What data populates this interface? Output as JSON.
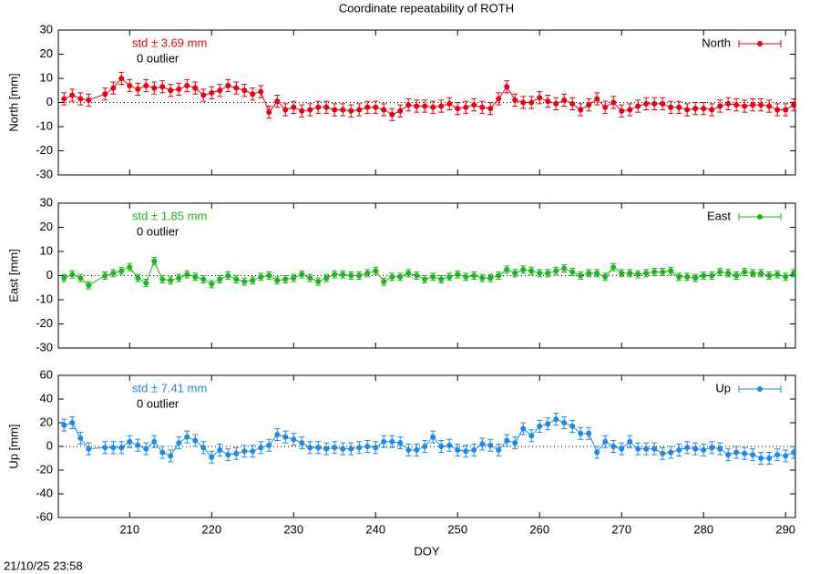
{
  "figure": {
    "title": "Coordinate repeatability of ROTH",
    "timestamp": "21/10/25 23:58"
  },
  "chart_data": [
    {
      "type": "line",
      "ylabel": "North [mm]",
      "xlim": [
        201.3,
        291.2
      ],
      "ylim": [
        -30,
        30
      ],
      "yticks": [
        -30,
        -20,
        -10,
        0,
        10,
        20,
        30
      ],
      "zero_line": true,
      "legend": "top-right",
      "annotations": [
        "std ± 3.69 mm",
        "0 outlier"
      ],
      "x": [
        202,
        203,
        204,
        205,
        207,
        208,
        209,
        210,
        211,
        212,
        213,
        214,
        215,
        216,
        217,
        218,
        219,
        220,
        221,
        222,
        223,
        224,
        225,
        226,
        227,
        228,
        229,
        230,
        231,
        232,
        233,
        234,
        235,
        236,
        237,
        238,
        239,
        240,
        241,
        242,
        243,
        244,
        245,
        246,
        247,
        248,
        249,
        250,
        251,
        252,
        253,
        254,
        255,
        256,
        257,
        258,
        259,
        260,
        261,
        262,
        263,
        264,
        265,
        266,
        267,
        268,
        269,
        270,
        271,
        272,
        273,
        274,
        275,
        276,
        277,
        278,
        279,
        280,
        281,
        282,
        283,
        284,
        285,
        286,
        287,
        288,
        289,
        290,
        291
      ],
      "series": [
        {
          "name": "North",
          "color": "#e4000f",
          "error": 2.5,
          "values": [
            1.5,
            3,
            1.5,
            1,
            3.5,
            6,
            10,
            7,
            5.5,
            7,
            6,
            6.5,
            5,
            5.5,
            7,
            6,
            3,
            4,
            5,
            7,
            6,
            5,
            3.5,
            4.5,
            -4,
            0.5,
            -3,
            -2,
            -3.5,
            -3,
            -2,
            -2,
            -3,
            -3,
            -3.5,
            -3,
            -2,
            -2,
            -3,
            -5,
            -3.5,
            -1,
            -1.5,
            -1.5,
            -2,
            -1.5,
            -0.5,
            -2.5,
            -2,
            -1,
            -2,
            -2.5,
            1.5,
            6.5,
            1,
            0,
            0,
            2,
            0.5,
            -0.5,
            1,
            -0.5,
            -3,
            -1,
            1.5,
            -2,
            0,
            -3.5,
            -3,
            -1.5,
            -0.5,
            -0.5,
            -0.5,
            -2,
            -2,
            -3,
            -2.5,
            -2.5,
            -3,
            -1.5,
            -0.5,
            -1,
            -1.5,
            -1,
            -1,
            -1.5,
            -3,
            -3,
            -1
          ]
        }
      ]
    },
    {
      "type": "line",
      "ylabel": "East [mm]",
      "xlim": [
        201.3,
        291.2
      ],
      "ylim": [
        -30,
        30
      ],
      "yticks": [
        -30,
        -20,
        -10,
        0,
        10,
        20,
        30
      ],
      "zero_line": true,
      "legend": "top-right",
      "annotations": [
        "std ± 1.85 mm",
        "0 outlier"
      ],
      "x": [
        202,
        203,
        204,
        205,
        207,
        208,
        209,
        210,
        211,
        212,
        213,
        214,
        215,
        216,
        217,
        218,
        219,
        220,
        221,
        222,
        223,
        224,
        225,
        226,
        227,
        228,
        229,
        230,
        231,
        232,
        233,
        234,
        235,
        236,
        237,
        238,
        239,
        240,
        241,
        242,
        243,
        244,
        245,
        246,
        247,
        248,
        249,
        250,
        251,
        252,
        253,
        254,
        255,
        256,
        257,
        258,
        259,
        260,
        261,
        262,
        263,
        264,
        265,
        266,
        267,
        268,
        269,
        270,
        271,
        272,
        273,
        274,
        275,
        276,
        277,
        278,
        279,
        280,
        281,
        282,
        283,
        284,
        285,
        286,
        287,
        288,
        289,
        290,
        291
      ],
      "series": [
        {
          "name": "East",
          "color": "#1fb41f",
          "error": 1.5,
          "values": [
            -1,
            0.5,
            -1,
            -4,
            0,
            1,
            2,
            3.5,
            -1,
            -3,
            6,
            -1.5,
            -2,
            -1,
            0.5,
            -0.5,
            -1.5,
            -3.5,
            -1.5,
            0,
            -1.5,
            -2.5,
            -2,
            -0.5,
            0,
            -2,
            -1.5,
            -1,
            0.5,
            -1,
            -2.5,
            -1,
            0.5,
            0.5,
            0,
            0,
            1,
            2,
            -2.5,
            -0.5,
            -0.5,
            1,
            0,
            -1.5,
            -0.5,
            -1.5,
            -0.5,
            0.5,
            -0.5,
            0,
            -1,
            -1,
            0,
            2.5,
            1,
            2.5,
            2,
            1,
            1,
            2,
            3,
            1.5,
            0,
            1,
            1,
            -0.5,
            3.5,
            1,
            1,
            0.5,
            1,
            1.5,
            1.5,
            2,
            -0.5,
            -0.5,
            -1,
            0,
            0,
            1.5,
            1,
            0,
            1.5,
            1,
            1,
            0,
            0.5,
            -0.5,
            1
          ]
        }
      ]
    },
    {
      "type": "line",
      "ylabel": "Up [mm]",
      "xlabel": "DOY",
      "xlim": [
        201.3,
        291.2
      ],
      "ylim": [
        -60,
        60
      ],
      "yticks": [
        -60,
        -40,
        -20,
        0,
        20,
        40,
        60
      ],
      "xticks": [
        210,
        220,
        230,
        240,
        250,
        260,
        270,
        280,
        290
      ],
      "zero_line": true,
      "legend": "top-right",
      "annotations": [
        "std ± 7.41 mm",
        "0 outlier"
      ],
      "x": [
        202,
        203,
        204,
        205,
        207,
        208,
        209,
        210,
        211,
        212,
        213,
        214,
        215,
        216,
        217,
        218,
        219,
        220,
        221,
        222,
        223,
        224,
        225,
        226,
        227,
        228,
        229,
        230,
        231,
        232,
        233,
        234,
        235,
        236,
        237,
        238,
        239,
        240,
        241,
        242,
        243,
        244,
        245,
        246,
        247,
        248,
        249,
        250,
        251,
        252,
        253,
        254,
        255,
        256,
        257,
        258,
        259,
        260,
        261,
        262,
        263,
        264,
        265,
        266,
        267,
        268,
        269,
        270,
        271,
        272,
        273,
        274,
        275,
        276,
        277,
        278,
        279,
        280,
        281,
        282,
        283,
        284,
        285,
        286,
        287,
        288,
        289,
        290,
        291
      ],
      "series": [
        {
          "name": "Up",
          "color": "#1e88e5",
          "error": 5,
          "values": [
            18,
            20,
            7,
            -2,
            -1,
            -1,
            -1,
            4,
            1,
            -2,
            4,
            -5,
            -8,
            3,
            8,
            5,
            -1,
            -9,
            -3,
            -7,
            -6,
            -4,
            -4,
            -1,
            1,
            10,
            8,
            6,
            3,
            -1,
            -1,
            -2,
            -1,
            -2,
            -2,
            -1,
            0,
            -1,
            4,
            4,
            3,
            -3,
            -3,
            0,
            8,
            0,
            1,
            -3,
            -4,
            -3,
            2,
            1,
            -3,
            5,
            3,
            15,
            9,
            17,
            19,
            23,
            20,
            17,
            11,
            11,
            -5,
            4,
            0,
            -2,
            4,
            -2,
            -2,
            -2,
            -6,
            -5,
            -3,
            -1,
            -2,
            -3,
            -1,
            -2,
            -7,
            -5,
            -6,
            -7,
            -10,
            -10,
            -7,
            -8,
            -5
          ]
        }
      ]
    }
  ]
}
